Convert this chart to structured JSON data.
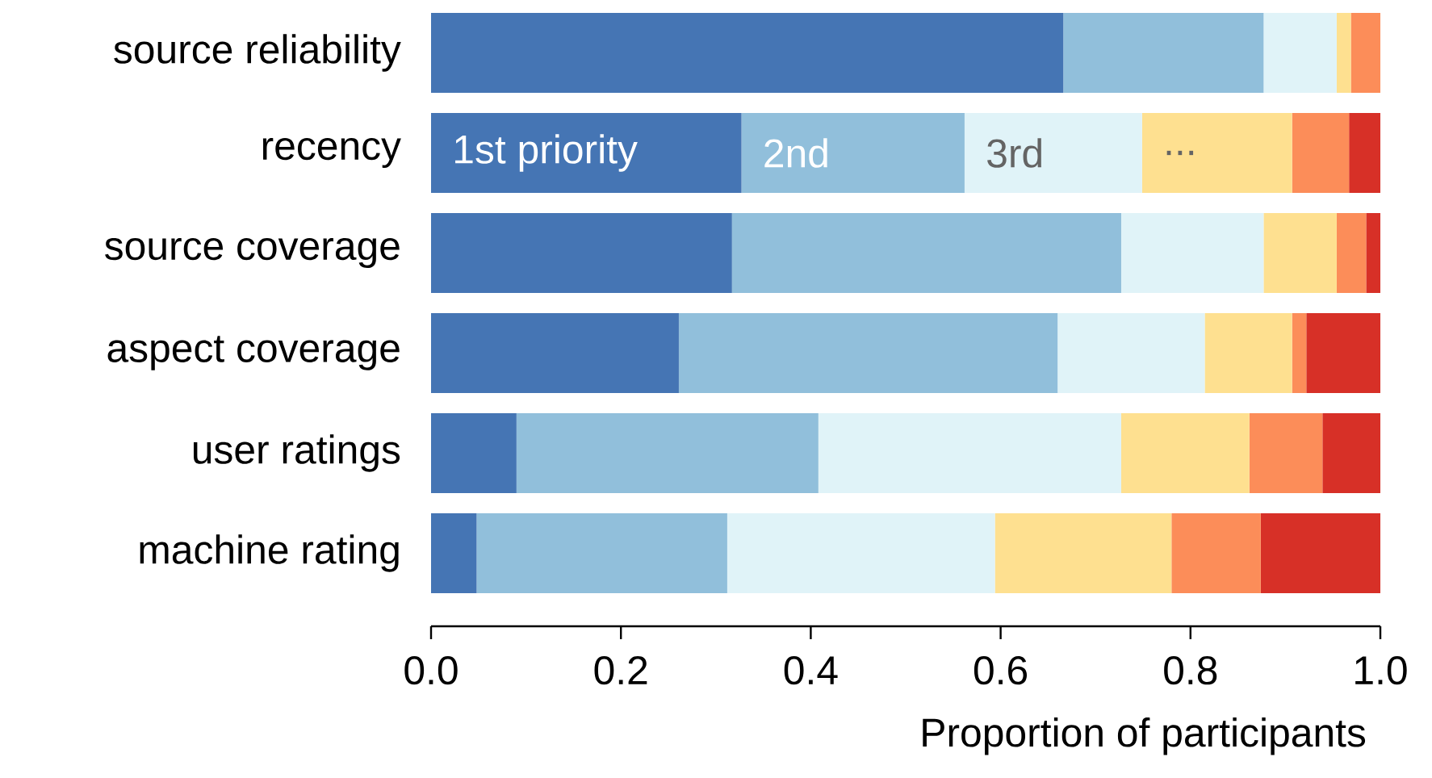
{
  "chart_data": {
    "type": "bar",
    "orientation": "horizontal",
    "stacked": true,
    "xlabel": "Proportion of participants",
    "categories": [
      "source reliability",
      "recency",
      "source coverage",
      "aspect coverage",
      "user ratings",
      "machine rating"
    ],
    "series": [
      {
        "name": "1st priority",
        "color": "#4575b4",
        "values": [
          0.666,
          0.327,
          0.317,
          0.261,
          0.09,
          0.048
        ]
      },
      {
        "name": "2nd",
        "color": "#91bfdb",
        "values": [
          0.211,
          0.235,
          0.41,
          0.399,
          0.318,
          0.264
        ]
      },
      {
        "name": "3rd",
        "color": "#e0f3f8",
        "values": [
          0.077,
          0.187,
          0.15,
          0.155,
          0.319,
          0.282
        ]
      },
      {
        "name": "...",
        "color": "#fee090",
        "values": [
          0.015,
          0.158,
          0.077,
          0.092,
          0.135,
          0.186
        ]
      },
      {
        "color": "#fc8d59",
        "values": [
          0.031,
          0.06,
          0.031,
          0.015,
          0.077,
          0.094
        ]
      },
      {
        "color": "#d73027",
        "values": [
          0.0,
          0.033,
          0.015,
          0.078,
          0.061,
          0.126
        ]
      }
    ],
    "xlim": [
      0,
      1
    ],
    "xticks": [
      {
        "value": 0,
        "label": "0.0"
      },
      {
        "value": 0.2,
        "label": "0.2"
      },
      {
        "value": 0.4,
        "label": "0.4"
      },
      {
        "value": 0.6,
        "label": "0.6"
      },
      {
        "value": 0.8,
        "label": "0.8"
      },
      {
        "value": 1,
        "label": "1.0"
      }
    ],
    "legend": false
  }
}
